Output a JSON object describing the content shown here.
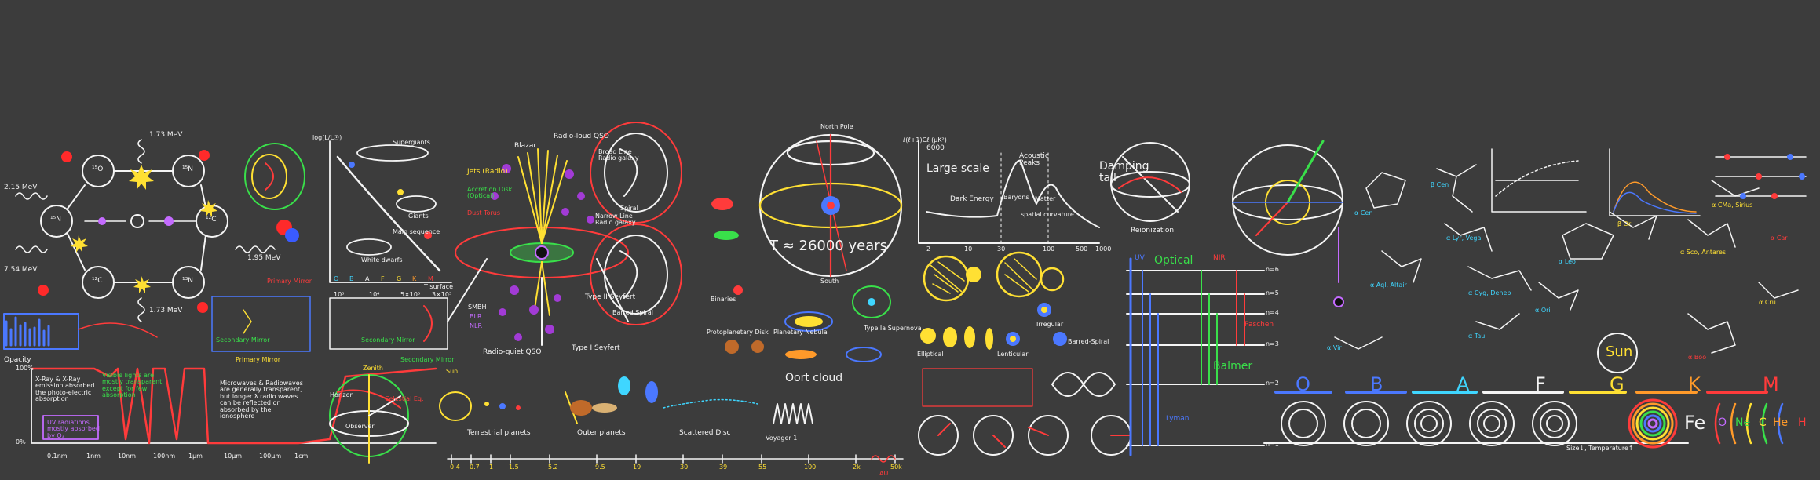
{
  "colors": {
    "board": "#3c3c3c",
    "chalk": "#f4f4f4",
    "yellow": "#ffe033",
    "red": "#ff3b3b",
    "green": "#39e04a",
    "blue": "#4b78ff",
    "cyan": "#3fd6ff",
    "orange": "#ff9a2a",
    "purple": "#c46bff",
    "magenta": "#ff4fd8"
  },
  "fusion": {
    "energy_215": "2.15 MeV",
    "energy_173_top": "1.73 MeV",
    "energy_173_bottom": "1.73 MeV",
    "energy_195": "1.95 MeV",
    "energy_754": "7.54 MeV",
    "nucleus_o15": "¹⁵O",
    "nucleus_n15": "¹⁵N",
    "nucleus_n13": "¹³N",
    "nucleus_c13": "¹³C",
    "nucleus_c12": "¹²C",
    "nucleus_n14": "¹⁴N",
    "nucleus_left": "¹⁵N",
    "nucleus_bl": "¹²C"
  },
  "hr": {
    "ylabel": "log(L/L☉)",
    "xlabel": "T surface",
    "spectral": [
      "O",
      "B",
      "A",
      "F",
      "G",
      "K",
      "M"
    ],
    "temps": [
      "10⁵",
      "10⁴",
      "5×10³",
      "3×10³"
    ],
    "label_supergiants": "Supergiants",
    "label_giants": "Giants",
    "label_wd": "White dwarfs",
    "label_ms": "Main sequence"
  },
  "mirrors": {
    "primary": "Primary Mirror",
    "secondary": "Secondary Mirror",
    "primary2": "Primary Mirror",
    "secondary2": "Secondary Mirror",
    "secondary3": "Secondary Mirror"
  },
  "opacity": {
    "title": "Opacity",
    "p100": "100%",
    "p0": "0%",
    "xray_note": "X-Ray & X-Ray emission absorbed the photo-electric absorption",
    "visible_note": "Visible lights are mostly transparent except for few absorption",
    "uv_note": "UV radiations mostly absorbed by O₃",
    "micro_note": "Microwaves & Radiowaves are generally transparent, but longer λ radio waves can be reflected or absorbed by the ionosphere",
    "ticks": [
      "0.1nm",
      "1nm",
      "10nm",
      "100nm",
      "1μm",
      "10μm",
      "100μm",
      "1cm",
      "10cm",
      "1m",
      "10m",
      "100m"
    ]
  },
  "sky": {
    "horizon": "Horizon",
    "celestial_eq": "Celestial Eq.",
    "zenith": "Zenith",
    "observer": "Observer"
  },
  "agn": {
    "blazar": "Blazar",
    "radio_loud_qso": "Radio-loud QSO",
    "broad_line": "Broad Line Radio galaxy",
    "narrow_line": "Narrow Line Radio galaxy",
    "jets": "Jets (Radio)",
    "accretion": "Accretion Disk (Optical)",
    "dust": "Dust Torus",
    "smbh": "SMBH",
    "blr": "BLR",
    "nlr": "NLR",
    "radio_quiet": "Radio-quiet QSO",
    "type1": "Type I Seyfert",
    "type2": "Type II Seyfert"
  },
  "galaxies": {
    "spiral": "Spiral",
    "barred_spiral": "Barred Spiral",
    "elliptical": "Elliptical",
    "lenticular": "Lenticular",
    "irregular": "Irregular",
    "barred": "Barred-Spiral",
    "type_ia": "Type Ia Supernova",
    "binaries": "Binaries",
    "protoplanetary": "Protoplanetary Disk",
    "planetary": "Planetary Nebula"
  },
  "precession": {
    "period": "T ≈ 26000 years",
    "north_pole": "North Pole",
    "south": "South"
  },
  "cmb": {
    "ylabel": "ℓ(ℓ+1)Cℓ (μK²)",
    "y6000": "6000",
    "large_scale": "Large scale",
    "acoustic": "Acoustic Peaks",
    "damping": "Damping tail",
    "dark_energy": "Dark Energy",
    "baryons": "Baryons",
    "matter": "Matter",
    "curvature": "spatial curvature",
    "reionization": "Reionization",
    "x2": "2",
    "x10": "10",
    "x30": "30",
    "x100": "100",
    "x500": "500",
    "x1000": "1000"
  },
  "solar_system": {
    "terrestrial": "Terrestrial planets",
    "outer": "Outer planets",
    "scattered": "Scattered Disc",
    "oort": "Oort cloud",
    "voyager": "Voyager 1",
    "sun": "Sun",
    "au_ticks": [
      "0.4",
      "0.7",
      "1",
      "1.5",
      "5.2",
      "9.5",
      "19",
      "30",
      "39",
      "55",
      "100",
      "2k",
      "50k"
    ],
    "au_unit": "AU"
  },
  "spectra": {
    "optical": "Optical",
    "uv": "UV",
    "near_ir": "NIR",
    "lyman": "Lyman",
    "balmer": "Balmer",
    "paschen": "Paschen",
    "levels": [
      "n=6",
      "n=5",
      "n=4",
      "n=3",
      "n=2",
      "n=1"
    ]
  },
  "stellar_classes": {
    "letters": [
      "O",
      "B",
      "A",
      "F",
      "G",
      "K",
      "M"
    ],
    "sun": "Sun",
    "fe": "Fe",
    "elements": [
      "O",
      "Ne",
      "C",
      "He",
      "H"
    ],
    "axis": "Size↓, Temperature↑"
  },
  "constellations": {
    "labels": [
      "α Cen",
      "β Cen",
      "α Lyr, Vega",
      "α Aql, Altair",
      "α Cyg, Deneb",
      "α Ori",
      "β Ori",
      "α Sco, Antares",
      "α CMa, Sirius",
      "α Boo",
      "α Cru",
      "α Leo",
      "α Tau",
      "α Vir",
      "α Car"
    ]
  }
}
